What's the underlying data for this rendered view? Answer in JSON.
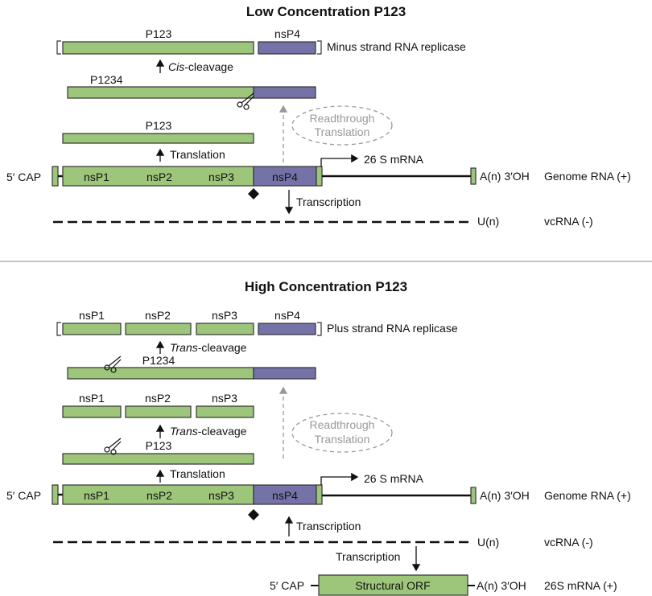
{
  "colors": {
    "green": "#9dc67b",
    "purple": "#7572a8",
    "gray": "#999999"
  },
  "low": {
    "title": "Low Concentration P123",
    "replicase": {
      "p123": "P123",
      "nsp4": "nsP4",
      "label": "Minus strand RNA replicase"
    },
    "cleavage": {
      "italic": "Cis",
      "rest": "-cleavage"
    },
    "p1234": "P1234",
    "p123": "P123",
    "translation": "Translation",
    "readthrough": [
      "Readthrough",
      "Translation"
    ],
    "genome": {
      "cap": "5′ CAP",
      "segments": [
        "nsP1",
        "nsP2",
        "nsP3",
        "nsP4"
      ],
      "tail": "A(n) 3′OH",
      "label": "Genome RNA (+)",
      "sg": "26 S mRNA"
    },
    "transcription": "Transcription",
    "vc": {
      "tail": "U(n)",
      "label": "vcRNA (-)"
    }
  },
  "high": {
    "title": "High Concentration P123",
    "replicase": {
      "segments": [
        "nsP1",
        "nsP2",
        "nsP3",
        "nsP4"
      ],
      "label": "Plus strand RNA replicase"
    },
    "cleavage": {
      "italic": "Trans",
      "rest": "-cleavage"
    },
    "p1234": "P1234",
    "mid": [
      "nsP1",
      "nsP2",
      "nsP3"
    ],
    "cleavage2": {
      "italic": "Trans",
      "rest": "-cleavage"
    },
    "p123": "P123",
    "translation": "Translation",
    "readthrough": [
      "Readthrough",
      "Translation"
    ],
    "genome": {
      "cap": "5′ CAP",
      "segments": [
        "nsP1",
        "nsP2",
        "nsP3",
        "nsP4"
      ],
      "tail": "A(n) 3′OH",
      "label": "Genome RNA (+)",
      "sg": "26 S mRNA"
    },
    "transcription": "Transcription",
    "vc": {
      "tail": "U(n)",
      "label": "vcRNA (-)"
    },
    "transcription2": "Transcription",
    "sgmrna": {
      "cap": "5′ CAP",
      "orf": "Structural ORF",
      "tail": "A(n) 3′OH",
      "label": "26S mRNA (+)"
    }
  }
}
